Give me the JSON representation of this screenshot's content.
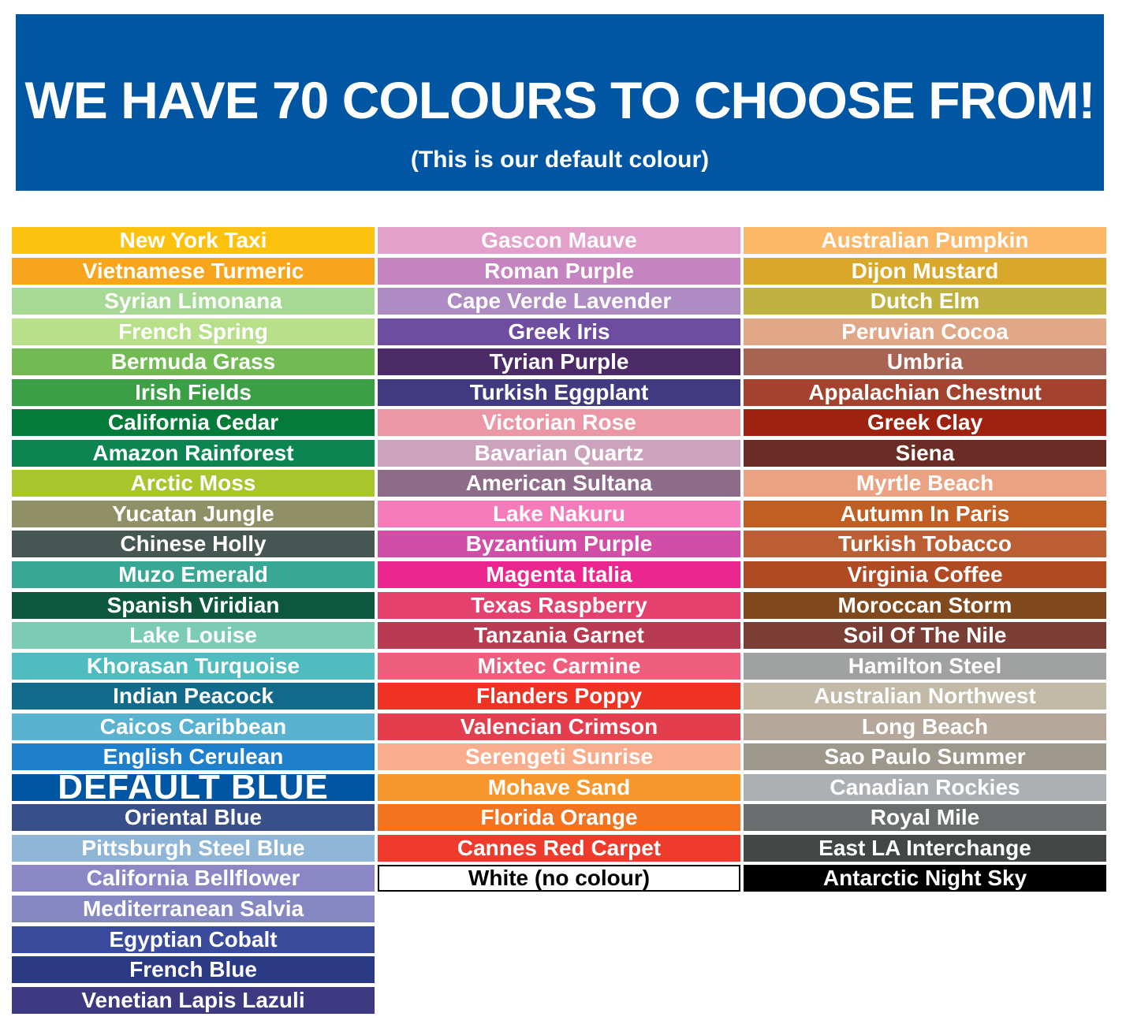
{
  "header": {
    "title": "WE HAVE 70 COLOURS TO CHOOSE FROM!",
    "subtitle": "(This is our default colour)",
    "background": "#0056A3"
  },
  "columns": [
    [
      {
        "name": "New York Taxi",
        "color": "#FDC20E"
      },
      {
        "name": "Vietnamese Turmeric",
        "color": "#F9A51B"
      },
      {
        "name": "Syrian Limonana",
        "color": "#A8D994"
      },
      {
        "name": "French Spring",
        "color": "#B8E08A"
      },
      {
        "name": "Bermuda Grass",
        "color": "#72BB53"
      },
      {
        "name": "Irish Fields",
        "color": "#3A9F45"
      },
      {
        "name": "California Cedar",
        "color": "#047B38"
      },
      {
        "name": "Amazon Rainforest",
        "color": "#0C8553"
      },
      {
        "name": "Arctic Moss",
        "color": "#A8C52C"
      },
      {
        "name": "Yucatan Jungle",
        "color": "#909066"
      },
      {
        "name": "Chinese Holly",
        "color": "#465653"
      },
      {
        "name": "Muzo Emerald",
        "color": "#38A895"
      },
      {
        "name": "Spanish Viridian",
        "color": "#0E5840"
      },
      {
        "name": "Lake Louise",
        "color": "#7CCBB4"
      },
      {
        "name": "Khorasan Turquoise",
        "color": "#4FBCC0"
      },
      {
        "name": "Indian Peacock",
        "color": "#126B8A"
      },
      {
        "name": "Caicos Caribbean",
        "color": "#59B2CF"
      },
      {
        "name": "English Cerulean",
        "color": "#1E7FCC"
      },
      {
        "name": "DEFAULT BLUE",
        "color": "#0056A3",
        "default": true
      },
      {
        "name": "Oriental Blue",
        "color": "#394F8A"
      },
      {
        "name": "Pittsburgh Steel Blue",
        "color": "#8FB6D6"
      },
      {
        "name": "California Bellflower",
        "color": "#8B86C4"
      },
      {
        "name": "Mediterranean Salvia",
        "color": "#8588C2"
      },
      {
        "name": "Egyptian Cobalt",
        "color": "#3A4A9C"
      },
      {
        "name": "French Blue",
        "color": "#2A3A84"
      },
      {
        "name": "Venetian Lapis Lazuli",
        "color": "#3E3A82"
      }
    ],
    [
      {
        "name": "Gascon Mauve",
        "color": "#E2A0CB"
      },
      {
        "name": "Roman Purple",
        "color": "#C584C0"
      },
      {
        "name": "Cape Verde Lavender",
        "color": "#AE8BC2"
      },
      {
        "name": "Greek Iris",
        "color": "#6E4DA1"
      },
      {
        "name": "Tyrian Purple",
        "color": "#4B2A67"
      },
      {
        "name": "Turkish Eggplant",
        "color": "#423A80"
      },
      {
        "name": "Victorian Rose",
        "color": "#EC97A6"
      },
      {
        "name": "Bavarian Quartz",
        "color": "#CCA3BD"
      },
      {
        "name": "American Sultana",
        "color": "#8F6B8A"
      },
      {
        "name": "Lake Nakuru",
        "color": "#F57BBB"
      },
      {
        "name": "Byzantium Purple",
        "color": "#D14DA6"
      },
      {
        "name": "Magenta Italia",
        "color": "#EC268F"
      },
      {
        "name": "Texas Raspberry",
        "color": "#E4416F"
      },
      {
        "name": "Tanzania Garnet",
        "color": "#B93B52"
      },
      {
        "name": "Mixtec Carmine",
        "color": "#F05E7E"
      },
      {
        "name": "Flanders Poppy",
        "color": "#EE3224"
      },
      {
        "name": "Valencian Crimson",
        "color": "#E33D4E"
      },
      {
        "name": "Serengeti Sunrise",
        "color": "#F9AD8C"
      },
      {
        "name": "Mohave Sand",
        "color": "#F7962A"
      },
      {
        "name": "Florida Orange",
        "color": "#F37321"
      },
      {
        "name": "Cannes Red Carpet",
        "color": "#EF3B2C"
      },
      {
        "name": "White (no colour)",
        "color": "#FFFFFF",
        "white": true
      }
    ],
    [
      {
        "name": "Australian Pumpkin",
        "color": "#FDB867"
      },
      {
        "name": "Dijon Mustard",
        "color": "#D9A72A"
      },
      {
        "name": "Dutch Elm",
        "color": "#C0B240"
      },
      {
        "name": "Peruvian Cocoa",
        "color": "#E0A887"
      },
      {
        "name": "Umbria",
        "color": "#A86453"
      },
      {
        "name": "Appalachian Chestnut",
        "color": "#A3432E"
      },
      {
        "name": "Greek Clay",
        "color": "#9D2310"
      },
      {
        "name": "Siena",
        "color": "#692D25"
      },
      {
        "name": "Myrtle Beach",
        "color": "#EAA282"
      },
      {
        "name": "Autumn In Paris",
        "color": "#C15E23"
      },
      {
        "name": "Turkish Tobacco",
        "color": "#BB5E33"
      },
      {
        "name": "Virginia Coffee",
        "color": "#AF4A22"
      },
      {
        "name": "Moroccan Storm",
        "color": "#814A1E"
      },
      {
        "name": "Soil Of The Nile",
        "color": "#7A3E34"
      },
      {
        "name": "Hamilton Steel",
        "color": "#A0A2A1"
      },
      {
        "name": "Australian Northwest",
        "color": "#C2B9A6"
      },
      {
        "name": "Long Beach",
        "color": "#B6A79B"
      },
      {
        "name": "Sao Paulo Summer",
        "color": "#9E988C"
      },
      {
        "name": "Canadian Rockies",
        "color": "#ADB0B3"
      },
      {
        "name": "Royal Mile",
        "color": "#6A6D6E"
      },
      {
        "name": "East LA Interchange",
        "color": "#434846"
      },
      {
        "name": "Antarctic Night Sky",
        "color": "#000000"
      }
    ]
  ]
}
